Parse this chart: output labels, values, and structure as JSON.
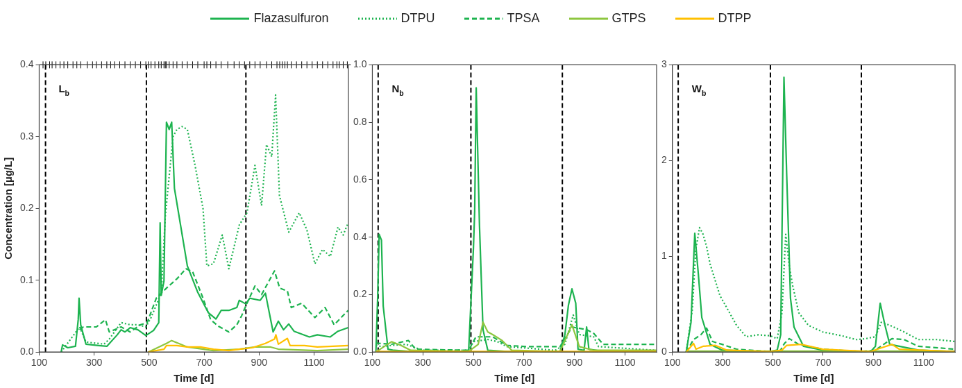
{
  "chart_data": [
    {
      "type": "line",
      "xlabel": "Time [d]",
      "ylabel": "Concentration [µg/L]",
      "annotations": [
        "L$_{b}$"
      ],
      "legend": "top",
      "grid": false,
      "xlim": [
        100,
        1225
      ],
      "xticks": [
        100,
        300,
        500,
        700,
        900,
        1100
      ],
      "ylim": [
        0,
        0.4
      ],
      "yticks": [
        {
          "value": 0,
          "label": "0.0"
        },
        {
          "value": 0.1,
          "label": "0.1"
        },
        {
          "value": 0.2,
          "label": "0.2"
        },
        {
          "value": 0.3,
          "label": "0.3"
        },
        {
          "value": 0.4,
          "label": "0.4"
        }
      ],
      "ref_lines": [
        {
          "axis": "x",
          "value": 123,
          "color": "#000000",
          "line_style": "dashed"
        },
        {
          "axis": "x",
          "value": 490,
          "color": "#000000",
          "line_style": "dashed"
        },
        {
          "axis": "x",
          "value": 852,
          "color": "#000000",
          "line_style": "dashed"
        }
      ],
      "series": [
        {
          "name": "Flazasulfuron",
          "color": "#1db34f",
          "line_style": "solid",
          "x": [
            180,
            185,
            204,
            232,
            242,
            245,
            251,
            270,
            317,
            346,
            384,
            398,
            412,
            431,
            459,
            488,
            516,
            535,
            540,
            544,
            554,
            563,
            573,
            582,
            592,
            639,
            677,
            715,
            743,
            762,
            790,
            819,
            828,
            852,
            866,
            904,
            923,
            951,
            970,
            989,
            1008,
            1027,
            1083,
            1112,
            1159,
            1187,
            1224
          ],
          "values": [
            0,
            0.01,
            0.006,
            0.008,
            0.045,
            0.075,
            0.038,
            0.011,
            0.009,
            0.008,
            0.024,
            0.031,
            0.028,
            0.034,
            0.031,
            0.023,
            0.03,
            0.041,
            0.18,
            0.079,
            0.099,
            0.32,
            0.31,
            0.32,
            0.228,
            0.12,
            0.083,
            0.055,
            0.046,
            0.058,
            0.058,
            0.062,
            0.072,
            0.067,
            0.075,
            0.072,
            0.082,
            0.028,
            0.043,
            0.031,
            0.039,
            0.029,
            0.021,
            0.024,
            0.021,
            0.029,
            0.034
          ]
        },
        {
          "name": "DTPU",
          "color": "#1db34f",
          "line_style": "dotted",
          "x": [
            180,
            247,
            270,
            336,
            355,
            398,
            431,
            459,
            488,
            507,
            544,
            559,
            573,
            587,
            601,
            620,
            639,
            667,
            696,
            710,
            734,
            766,
            790,
            828,
            856,
            885,
            909,
            927,
            946,
            960,
            974,
            1008,
            1046,
            1074,
            1103,
            1131,
            1159,
            1187,
            1206,
            1224
          ],
          "values": [
            0,
            0.035,
            0.014,
            0.011,
            0.018,
            0.041,
            0.038,
            0.038,
            0.035,
            0.048,
            0.082,
            0.19,
            0.245,
            0.3,
            0.31,
            0.314,
            0.31,
            0.26,
            0.2,
            0.12,
            0.123,
            0.163,
            0.116,
            0.177,
            0.194,
            0.26,
            0.204,
            0.289,
            0.272,
            0.358,
            0.218,
            0.167,
            0.194,
            0.17,
            0.123,
            0.143,
            0.133,
            0.174,
            0.163,
            0.18
          ]
        },
        {
          "name": "TPSA",
          "color": "#1db34f",
          "line_style": "dashed",
          "x": [
            247,
            261,
            308,
            341,
            355,
            398,
            431,
            469,
            493,
            526,
            563,
            601,
            634,
            658,
            696,
            724,
            752,
            790,
            819,
            837,
            856,
            885,
            909,
            956,
            975,
            1003,
            1017,
            1055,
            1103,
            1140,
            1173,
            1224
          ],
          "values": [
            0.031,
            0.035,
            0.035,
            0.045,
            0.028,
            0.035,
            0.028,
            0.038,
            0.041,
            0.075,
            0.089,
            0.102,
            0.116,
            0.112,
            0.075,
            0.045,
            0.036,
            0.028,
            0.038,
            0.051,
            0.068,
            0.092,
            0.08,
            0.113,
            0.089,
            0.085,
            0.062,
            0.068,
            0.048,
            0.062,
            0.038,
            0.058
          ]
        },
        {
          "name": "GTPS",
          "color": "#8dc63f",
          "line_style": "solid",
          "x": [
            497,
            563,
            582,
            639,
            734,
            828,
            885,
            942,
            970,
            1112,
            1224
          ],
          "values": [
            0,
            0.012,
            0.016,
            0.007,
            0.002,
            0.004,
            0.007,
            0.007,
            0.004,
            0.002,
            0.004
          ]
        },
        {
          "name": "DTPP",
          "color": "#ffc000",
          "line_style": "solid",
          "x": [
            497,
            554,
            563,
            601,
            639,
            686,
            734,
            790,
            828,
            875,
            923,
            956,
            961,
            970,
            1003,
            1013,
            1065,
            1112,
            1224
          ],
          "values": [
            0,
            0.004,
            0.009,
            0.009,
            0.007,
            0.007,
            0.004,
            0.002,
            0.004,
            0.006,
            0.012,
            0.018,
            0.024,
            0.011,
            0.019,
            0.009,
            0.009,
            0.007,
            0.009
          ]
        },
        {
          "type": "scatter",
          "marker": "cross",
          "color": "#000000",
          "x": [
            114,
            124,
            138,
            147,
            161,
            176,
            190,
            204,
            223,
            237,
            251,
            275,
            294,
            308,
            327,
            346,
            360,
            374,
            393,
            412,
            431,
            450,
            469,
            488,
            497,
            507,
            521,
            535,
            544,
            554,
            559,
            563,
            573,
            587,
            601,
            620,
            639,
            658,
            677,
            700,
            710,
            724,
            743,
            762,
            786,
            809,
            828,
            847,
            866,
            885,
            904,
            927,
            946,
            965,
            975,
            984,
            994,
            1003,
            1017,
            1036,
            1055,
            1074,
            1093,
            1112,
            1131,
            1150,
            1169,
            1183,
            1192,
            1206,
            1221
          ],
          "values": [
            0.4,
            0.4,
            0.4,
            0.4,
            0.4,
            0.4,
            0.4,
            0.4,
            0.4,
            0.4,
            0.4,
            0.4,
            0.4,
            0.4,
            0.4,
            0.4,
            0.4,
            0.4,
            0.4,
            0.4,
            0.4,
            0.4,
            0.4,
            0.4,
            0.4,
            0.4,
            0.4,
            0.4,
            0.4,
            0.4,
            0.4,
            0.4,
            0.4,
            0.4,
            0.4,
            0.4,
            0.4,
            0.4,
            0.4,
            0.4,
            0.4,
            0.4,
            0.4,
            0.4,
            0.4,
            0.4,
            0.4,
            0.4,
            0.4,
            0.4,
            0.4,
            0.4,
            0.4,
            0.4,
            0.4,
            0.4,
            0.4,
            0.4,
            0.4,
            0.4,
            0.4,
            0.4,
            0.4,
            0.4,
            0.4,
            0.4,
            0.4,
            0.4,
            0.4,
            0.4,
            0.4
          ]
        }
      ]
    },
    {
      "type": "line",
      "xlabel": "Time [d]",
      "annotations": [
        "N$_{b}$"
      ],
      "grid": false,
      "xlim": [
        100,
        1225
      ],
      "xticks": [
        100,
        300,
        500,
        700,
        900,
        1100
      ],
      "ylim": [
        0,
        1
      ],
      "yticks": [
        {
          "value": 0,
          "label": "0.0"
        },
        {
          "value": 0.2,
          "label": "0.2"
        },
        {
          "value": 0.4,
          "label": "0.4"
        },
        {
          "value": 0.6,
          "label": "0.6"
        },
        {
          "value": 0.8,
          "label": "0.8"
        },
        {
          "value": 1,
          "label": "1.0"
        }
      ],
      "ref_lines": [
        {
          "axis": "x",
          "value": 123,
          "color": "#000000",
          "line_style": "dashed"
        },
        {
          "axis": "x",
          "value": 490,
          "color": "#000000",
          "line_style": "dashed"
        },
        {
          "axis": "x",
          "value": 852,
          "color": "#000000",
          "line_style": "dashed"
        }
      ],
      "series": [
        {
          "color": "#1db34f",
          "line_style": "solid",
          "x": [
            114,
            121,
            127,
            136,
            143,
            162,
            186,
            252,
            481,
            500,
            505,
            511,
            524,
            538,
            557,
            633,
            843,
            862,
            876,
            890,
            905,
            914,
            938,
            948,
            957,
            1014,
            1224
          ],
          "values": [
            0,
            0.19,
            0.41,
            0.39,
            0.16,
            0.01,
            0.006,
            0.002,
            0.002,
            0.36,
            0.49,
            0.92,
            0.44,
            0.078,
            0.006,
            0.002,
            0.002,
            0.06,
            0.163,
            0.22,
            0.17,
            0.01,
            0.006,
            0.087,
            0.01,
            0.002,
            0.002
          ]
        },
        {
          "color": "#1db34f",
          "line_style": "dotted",
          "x": [
            114,
            138,
            176,
            233,
            300,
            481,
            500,
            557,
            595,
            633,
            824,
            862,
            895,
            919,
            976,
            995,
            1224
          ],
          "values": [
            0.023,
            0.019,
            0.023,
            0.027,
            0.006,
            0.006,
            0.036,
            0.044,
            0.036,
            0.019,
            0.006,
            0.027,
            0.129,
            0.061,
            0.053,
            0.019,
            0.006
          ]
        },
        {
          "color": "#1db34f",
          "line_style": "dashed",
          "x": [
            114,
            176,
            243,
            271,
            481,
            510,
            576,
            633,
            710,
            843,
            890,
            948,
            976,
            1014,
            1224
          ],
          "values": [
            0.031,
            0.027,
            0.04,
            0.01,
            0.006,
            0.053,
            0.053,
            0.023,
            0.019,
            0.019,
            0.087,
            0.078,
            0.065,
            0.027,
            0.027
          ]
        },
        {
          "color": "#8dc63f",
          "line_style": "solid",
          "x": [
            114,
            176,
            214,
            252,
            481,
            519,
            538,
            557,
            576,
            614,
            652,
            843,
            890,
            919,
            976,
            1224
          ],
          "values": [
            0,
            0.036,
            0.023,
            0.006,
            0.002,
            0.027,
            0.104,
            0.07,
            0.061,
            0.04,
            0.006,
            0.002,
            0.095,
            0.019,
            0.006,
            0.006
          ]
        },
        {
          "color": "#ffc000",
          "line_style": "solid",
          "x": [
            114,
            481,
            843,
            1224
          ],
          "values": [
            0.002,
            0.002,
            0.002,
            0.002
          ]
        }
      ]
    },
    {
      "type": "line",
      "xlabel": "Time [d]",
      "annotations": [
        "W$_{b}$"
      ],
      "grid": false,
      "xlim": [
        100,
        1225
      ],
      "xticks": [
        100,
        300,
        500,
        700,
        900,
        1100
      ],
      "ylim": [
        0,
        3
      ],
      "yticks": [
        0,
        1,
        2,
        3
      ],
      "ref_lines": [
        {
          "axis": "x",
          "value": 123,
          "color": "#000000",
          "line_style": "dashed"
        },
        {
          "axis": "x",
          "value": 490,
          "color": "#000000",
          "line_style": "dashed"
        },
        {
          "axis": "x",
          "value": 852,
          "color": "#000000",
          "line_style": "dashed"
        }
      ],
      "series": [
        {
          "color": "#1db34f",
          "line_style": "solid",
          "x": [
            155,
            174,
            189,
            203,
            217,
            250,
            298,
            489,
            517,
            531,
            544,
            555,
            570,
            584,
            622,
            698,
            889,
            908,
            927,
            946,
            965,
            1079,
            1224
          ],
          "values": [
            0,
            0.31,
            1.24,
            0.82,
            0.36,
            0.08,
            0.02,
            0.005,
            0.02,
            0.18,
            2.87,
            1.84,
            0.56,
            0.26,
            0.06,
            0.02,
            0.005,
            0.06,
            0.51,
            0.28,
            0.08,
            0.02,
            0.005
          ]
        },
        {
          "color": "#1db34f",
          "line_style": "dotted",
          "x": [
            155,
            179,
            193,
            208,
            222,
            236,
            250,
            289,
            317,
            355,
            393,
            441,
            489,
            517,
            536,
            551,
            565,
            579,
            603,
            641,
            698,
            774,
            831,
            870,
            908,
            931,
            965,
            1022,
            1079,
            1155,
            1224
          ],
          "values": [
            0,
            0.44,
            1.07,
            1.3,
            1.23,
            1.1,
            0.92,
            0.59,
            0.46,
            0.28,
            0.16,
            0.18,
            0.17,
            0.14,
            0.41,
            1.23,
            0.9,
            0.69,
            0.41,
            0.28,
            0.21,
            0.17,
            0.13,
            0.14,
            0.16,
            0.31,
            0.28,
            0.21,
            0.13,
            0.13,
            0.11
          ]
        },
        {
          "color": "#1db34f",
          "line_style": "dashed",
          "x": [
            155,
            184,
            213,
            236,
            260,
            298,
            355,
            489,
            527,
            546,
            565,
            603,
            698,
            850,
            908,
            946,
            974,
            1022,
            1079,
            1224
          ],
          "values": [
            0,
            0.13,
            0.18,
            0.25,
            0.11,
            0.08,
            0.03,
            0.005,
            0.005,
            0.09,
            0.14,
            0.08,
            0.03,
            0.005,
            0.02,
            0.09,
            0.14,
            0.13,
            0.06,
            0.03
          ]
        },
        {
          "color": "#8dc63f",
          "line_style": "solid",
          "x": [
            155,
            517,
            889,
            1224
          ],
          "values": [
            0.01,
            0.01,
            0.01,
            0.01
          ]
        },
        {
          "color": "#ffc000",
          "line_style": "solid",
          "x": [
            155,
            184,
            194,
            222,
            270,
            317,
            489,
            536,
            555,
            612,
            698,
            889,
            927,
            974,
            1003,
            1224
          ],
          "values": [
            0,
            0.09,
            0.03,
            0.06,
            0.07,
            0.02,
            0.005,
            0.02,
            0.07,
            0.08,
            0.03,
            0.005,
            0.04,
            0.08,
            0.03,
            0.005
          ]
        }
      ]
    }
  ]
}
